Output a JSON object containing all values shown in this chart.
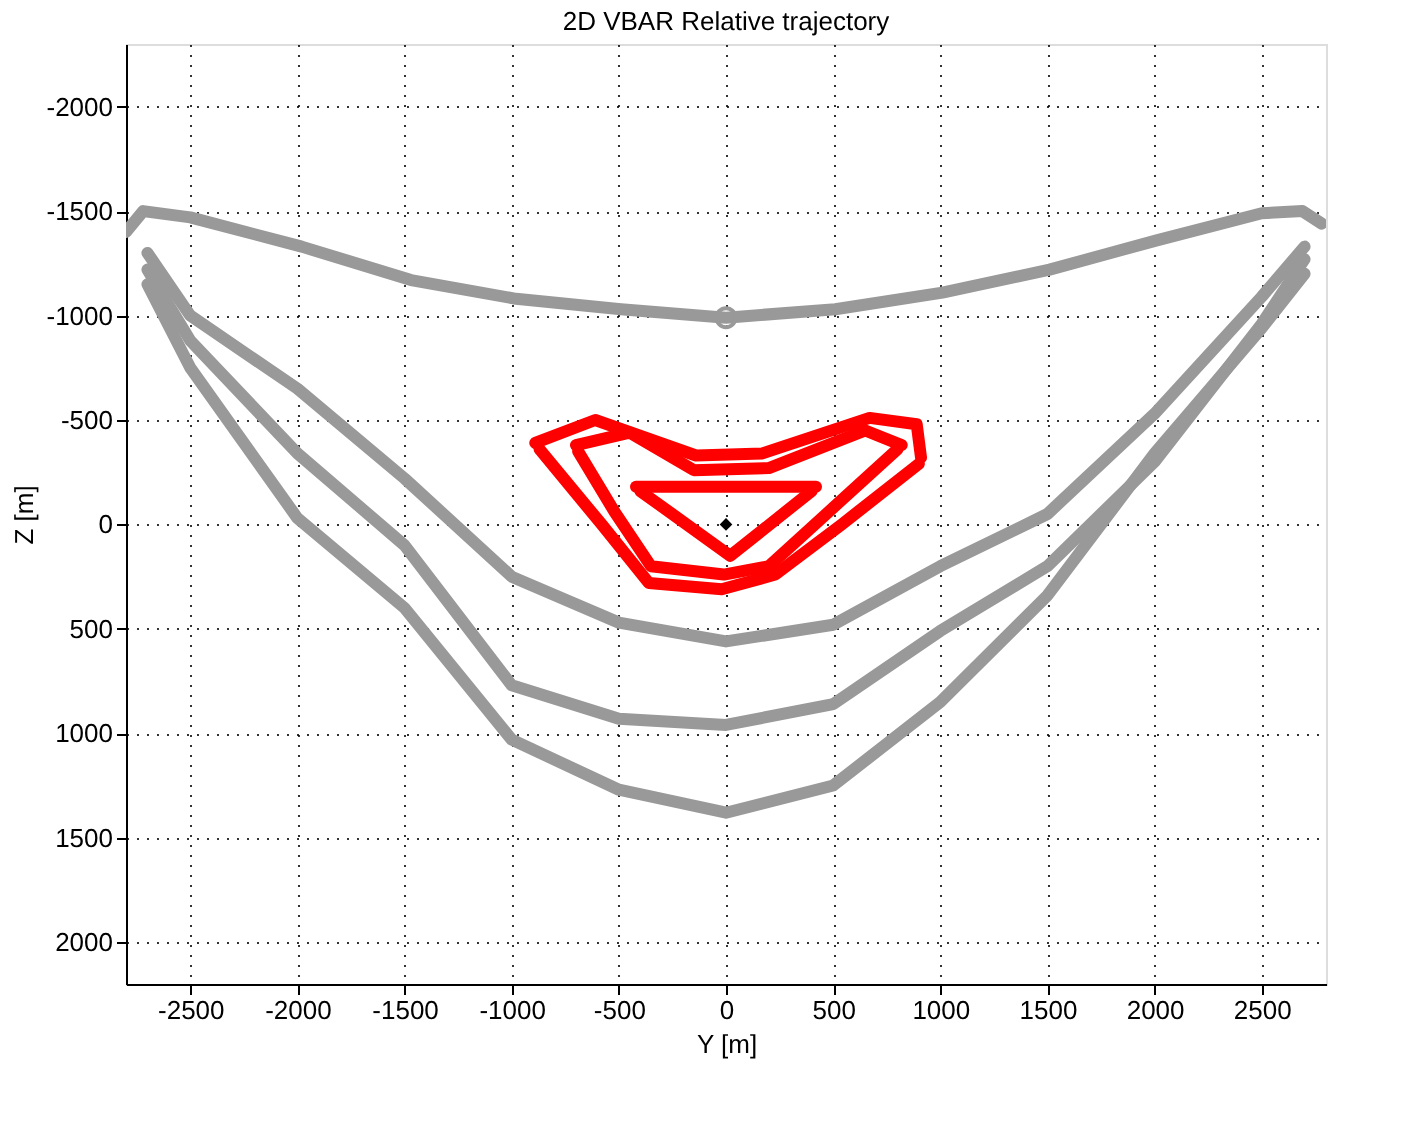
{
  "chart_data": {
    "type": "line",
    "title": "2D VBAR Relative trajectory",
    "xlabel": "Y [m]",
    "ylabel": "Z [m]",
    "xlim": [
      -2800,
      2800
    ],
    "xticks": [
      -2500,
      -2000,
      -1500,
      -1000,
      -500,
      0,
      500,
      1000,
      1500,
      2000,
      2500
    ],
    "ylim": [
      2200,
      -2300
    ],
    "yticks": [
      -2000,
      -1500,
      -1000,
      -500,
      0,
      500,
      1000,
      1500,
      2000
    ],
    "grid": true,
    "line_style": "solid",
    "marker": "none",
    "series": [
      {
        "color": "#999999",
        "x": [
          -2800,
          -2720,
          -2500,
          -1980,
          -1470,
          -980,
          -490,
          0,
          510,
          1010,
          1510,
          2010,
          2500,
          2690,
          2780
        ],
        "values": [
          -1400,
          -1500,
          -1470,
          -1330,
          -1170,
          -1080,
          -1030,
          -990,
          -1030,
          -1110,
          -1220,
          -1360,
          -1490,
          -1500,
          -1440
        ]
      },
      {
        "color": "#999999",
        "x": [
          -2700,
          -2500,
          -2000,
          -1500,
          -1000,
          -500,
          0,
          500,
          1000,
          1500,
          2000,
          2500,
          2700
        ],
        "values": [
          -1300,
          -1000,
          -650,
          -220,
          250,
          470,
          560,
          480,
          200,
          -50,
          -530,
          -1090,
          -1330
        ]
      },
      {
        "color": "#999999",
        "x": [
          -2700,
          -2500,
          -2000,
          -1500,
          -1000,
          -500,
          0,
          500,
          1000,
          1500,
          2000,
          2500,
          2700
        ],
        "values": [
          -1220,
          -880,
          -340,
          100,
          770,
          930,
          960,
          860,
          510,
          200,
          -300,
          -960,
          -1270
        ]
      },
      {
        "color": "#999999",
        "x": [
          -2700,
          -2500,
          -2000,
          -1500,
          -1000,
          -500,
          0,
          500,
          1000,
          1500,
          2000,
          2500,
          2700
        ],
        "values": [
          -1150,
          -750,
          -30,
          400,
          1030,
          1270,
          1380,
          1250,
          850,
          340,
          -340,
          -940,
          -1200
        ]
      },
      {
        "color": "#ff0000",
        "x": [
          -890,
          -610,
          -140,
          170,
          670,
          890,
          910
        ],
        "values": [
          -390,
          -500,
          -330,
          -340,
          -510,
          -480,
          -320
        ]
      },
      {
        "color": "#ff0000",
        "x": [
          -870,
          -580,
          -360,
          -20,
          230,
          540,
          900
        ],
        "values": [
          -360,
          0,
          280,
          310,
          240,
          0,
          -290
        ]
      },
      {
        "color": "#ff0000",
        "x": [
          -700,
          -450,
          -150,
          200,
          650,
          820
        ],
        "values": [
          -380,
          -440,
          -260,
          -270,
          -450,
          -380
        ]
      },
      {
        "color": "#ff0000",
        "x": [
          -690,
          -520,
          -350,
          -10,
          200,
          500,
          800
        ],
        "values": [
          -350,
          -60,
          200,
          240,
          200,
          -80,
          -360
        ]
      },
      {
        "color": "#ff0000",
        "x": [
          -420,
          420
        ],
        "values": [
          -180,
          -180
        ]
      },
      {
        "color": "#ff0000",
        "x": [
          -400,
          20,
          400
        ],
        "values": [
          -160,
          150,
          -160
        ]
      },
      {
        "type": "scatter",
        "marker": "circle",
        "color": "#999999",
        "x": [
          0
        ],
        "values": [
          -990
        ]
      },
      {
        "type": "scatter",
        "marker": "diamond",
        "color": "#000000",
        "x": [
          0
        ],
        "values": [
          0
        ]
      }
    ]
  }
}
